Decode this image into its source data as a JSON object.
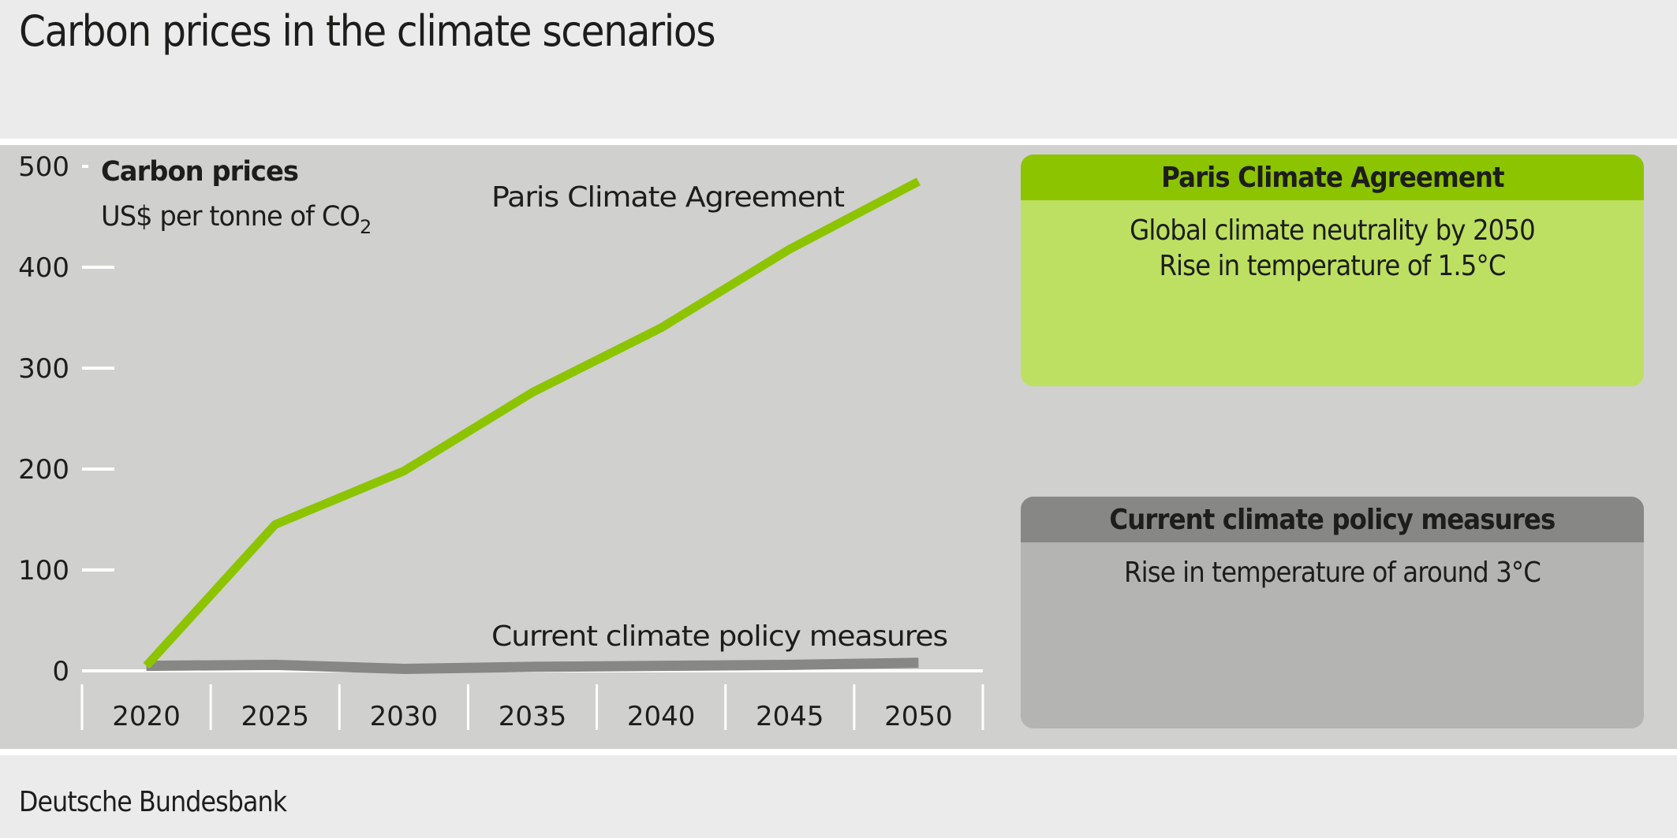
{
  "header": {
    "title": "Carbon prices in the climate scenarios"
  },
  "footer": {
    "source": "Deutsche Bundesbank"
  },
  "colors": {
    "paris_line": "#8dc400",
    "current_line": "#878786",
    "paris_box_header": "#8dc400",
    "paris_box_body": "#bde062",
    "current_box_header": "#878786",
    "current_box_body": "#b4b4b2",
    "panel_bg": "#d0d0ce",
    "page_bg": "#ebebeb"
  },
  "chart_data": {
    "type": "line",
    "title": "Carbon prices in the climate scenarios",
    "ylabel": "Carbon prices",
    "yunit": "US$ per tonne of CO2",
    "yunit_prefix": "US$ per tonne of CO",
    "yunit_sub": "2",
    "xlabel": "",
    "x": [
      "2020",
      "2025",
      "2030",
      "2035",
      "2040",
      "2045",
      "2050"
    ],
    "yticks": [
      "0",
      "100",
      "200",
      "300",
      "400",
      "500"
    ],
    "ylim": [
      0,
      500
    ],
    "grid": false,
    "series": [
      {
        "name": "Paris Climate Agreement",
        "values": [
          5,
          145,
          198,
          276,
          340,
          418,
          485
        ]
      },
      {
        "name": "Current climate policy measures",
        "values": [
          5,
          6,
          2,
          4,
          5,
          6,
          8
        ]
      }
    ],
    "annotations": [
      {
        "text": "Paris Climate Agreement",
        "series": 0
      },
      {
        "text": "Current climate policy measures",
        "series": 1
      }
    ]
  },
  "legend_boxes": [
    {
      "title": "Paris Climate Agreement",
      "lines": [
        "Global climate neutrality by 2050",
        "Rise in temperature of 1.5°C"
      ]
    },
    {
      "title": "Current climate policy measures",
      "lines": [
        "Rise in temperature of around 3°C"
      ]
    }
  ]
}
